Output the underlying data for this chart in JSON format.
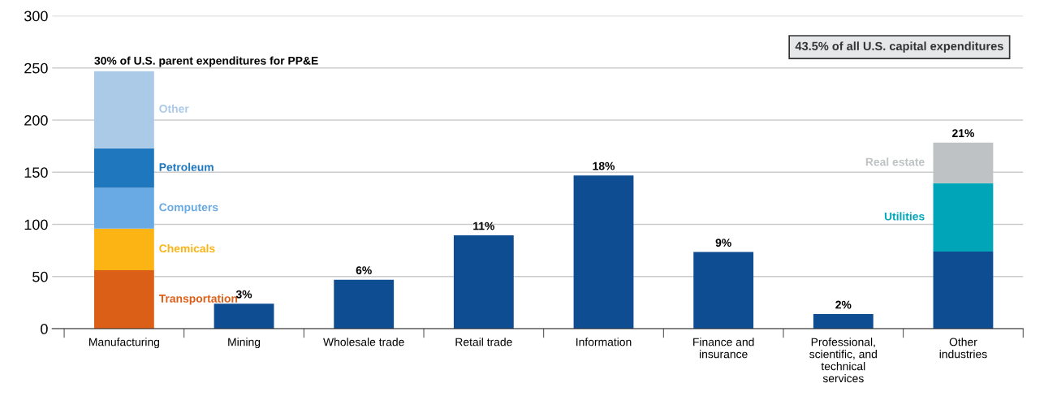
{
  "chart_data": {
    "type": "bar",
    "stacked": true,
    "categories": [
      "Manufacturing",
      "Mining",
      "Wholesale trade",
      "Retail trade",
      "Information",
      "Finance and\ninsurance",
      "Professional,\nscientific, and\ntechnical\nservices",
      "Other\nindustries"
    ],
    "series": [
      {
        "name": "Transportation",
        "color": "#dc5f18",
        "values": [
          56,
          null,
          null,
          null,
          null,
          null,
          null,
          null
        ]
      },
      {
        "name": "Chemicals",
        "color": "#fcb415",
        "values": [
          40,
          null,
          null,
          null,
          null,
          null,
          null,
          null
        ]
      },
      {
        "name": "Computers",
        "color": "#6aaae4",
        "values": [
          39,
          null,
          null,
          null,
          null,
          null,
          null,
          null
        ]
      },
      {
        "name": "Petroleum",
        "color": "#1f77be",
        "values": [
          38,
          null,
          null,
          null,
          null,
          null,
          null,
          null
        ]
      },
      {
        "name": "Other",
        "color": "#abcae7",
        "values": [
          74,
          null,
          null,
          null,
          null,
          null,
          null,
          null
        ]
      },
      {
        "color": "#0f4d93",
        "values": [
          null,
          24,
          47,
          89.5,
          147,
          73.5,
          14,
          74
        ]
      },
      {
        "name": "Utilities",
        "color": "#00a6b8",
        "values": [
          null,
          null,
          null,
          null,
          null,
          null,
          null,
          65.5
        ]
      },
      {
        "name": "Real estate",
        "color": "#bfc2c4",
        "values": [
          null,
          null,
          null,
          null,
          null,
          null,
          null,
          39
        ]
      }
    ],
    "annotations": [
      {
        "text": "30% of U.S. parent expenditures for PP&E",
        "x": "Manufacturing",
        "y": 247
      },
      {
        "text": "3%",
        "x": "Mining",
        "y": 24
      },
      {
        "text": "6%",
        "x": "Wholesale trade",
        "y": 47
      },
      {
        "text": "11%",
        "x": "Retail trade",
        "y": 89.5
      },
      {
        "text": "18%",
        "x": "Information",
        "y": 147
      },
      {
        "text": "9%",
        "x": "Finance and\ninsurance",
        "y": 73.5
      },
      {
        "text": "2%",
        "x": "Professional,\nscientific, and\ntechnical\nservices",
        "y": 14
      },
      {
        "text": "21%",
        "x": "Other\nindustries",
        "y": 178.5
      },
      "43.5% of all U.S. capital expenditures"
    ],
    "ylim": [
      0,
      300
    ],
    "yticks": [
      0,
      50,
      100,
      150,
      200,
      250,
      300
    ],
    "grid": "y"
  }
}
